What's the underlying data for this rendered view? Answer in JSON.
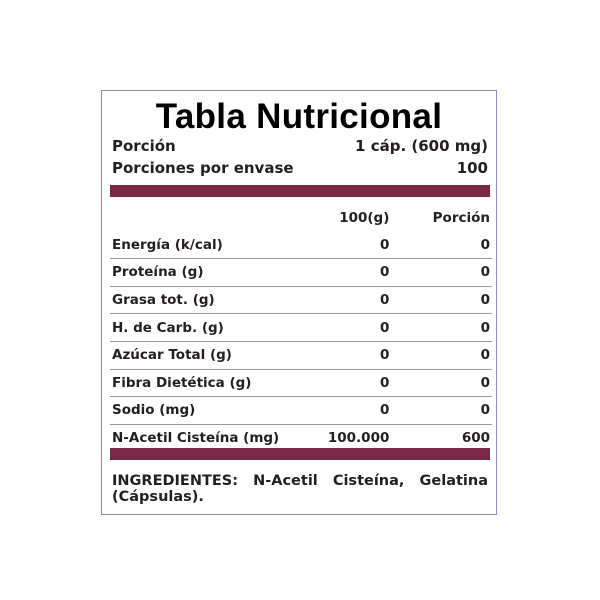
{
  "title": "Tabla Nutricional",
  "serving": {
    "label": "Porción",
    "value": "1 cáp. (600 mg)"
  },
  "servings_per_container": {
    "label": "Porciones por envase",
    "value": "100"
  },
  "bar_color": "#7a2846",
  "columns": [
    "",
    "100(g)",
    "Porción"
  ],
  "rows": [
    {
      "name": "Energía (k/cal)",
      "per100": "0",
      "portion": "0"
    },
    {
      "name": "Proteína (g)",
      "per100": "0",
      "portion": "0"
    },
    {
      "name": "Grasa tot. (g)",
      "per100": "0",
      "portion": "0"
    },
    {
      "name": "H. de Carb. (g)",
      "per100": "0",
      "portion": "0"
    },
    {
      "name": "Azúcar Total (g)",
      "per100": "0",
      "portion": "0"
    },
    {
      "name": "Fibra Dietética (g)",
      "per100": "0",
      "portion": "0"
    },
    {
      "name": "Sodio (mg)",
      "per100": "0",
      "portion": "0"
    },
    {
      "name": "N-Acetil Cisteína (mg)",
      "per100": "100.000",
      "portion": "600"
    }
  ],
  "ingredients": "INGREDIENTES: N-Acetil Cisteína, Gelatina (Cápsulas)."
}
